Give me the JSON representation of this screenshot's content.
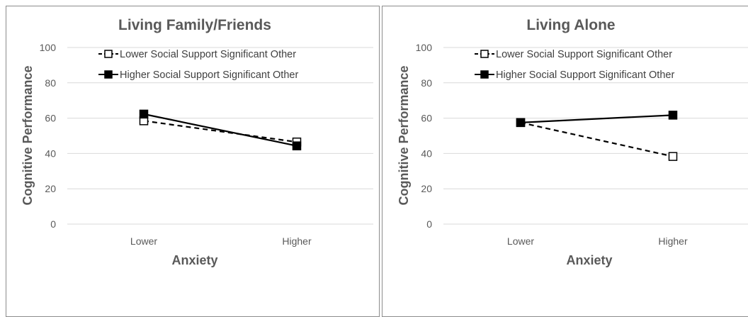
{
  "chart_data": [
    {
      "type": "line",
      "title": "Living Family/Friends",
      "xlabel": "Anxiety",
      "ylabel": "Cognitive Performance",
      "categories": [
        "Lower",
        "Higher"
      ],
      "ylim": [
        0,
        100
      ],
      "yticks": [
        0,
        20,
        40,
        60,
        80,
        100
      ],
      "grid": true,
      "legend_position": "top",
      "series": [
        {
          "name": "Lower Social Support Significant Other",
          "values": [
            58.5,
            46.5
          ],
          "line_style": "dashed",
          "marker": "open-square",
          "color": "#000000"
        },
        {
          "name": "Higher Social Support Significant Other",
          "values": [
            62.3,
            44.3
          ],
          "line_style": "solid",
          "marker": "filled-square",
          "color": "#000000"
        }
      ]
    },
    {
      "type": "line",
      "title": "Living Alone",
      "xlabel": "Anxiety",
      "ylabel": "Cognitive Performance",
      "categories": [
        "Lower",
        "Higher"
      ],
      "ylim": [
        0,
        100
      ],
      "yticks": [
        0,
        20,
        40,
        60,
        80,
        100
      ],
      "grid": true,
      "legend_position": "top",
      "series": [
        {
          "name": "Lower Social Support Significant Other",
          "values": [
            57.5,
            38.3
          ],
          "line_style": "dashed",
          "marker": "open-square",
          "color": "#000000"
        },
        {
          "name": "Higher Social Support Significant Other",
          "values": [
            57.5,
            61.7
          ],
          "line_style": "solid",
          "marker": "filled-square",
          "color": "#000000"
        }
      ]
    }
  ]
}
